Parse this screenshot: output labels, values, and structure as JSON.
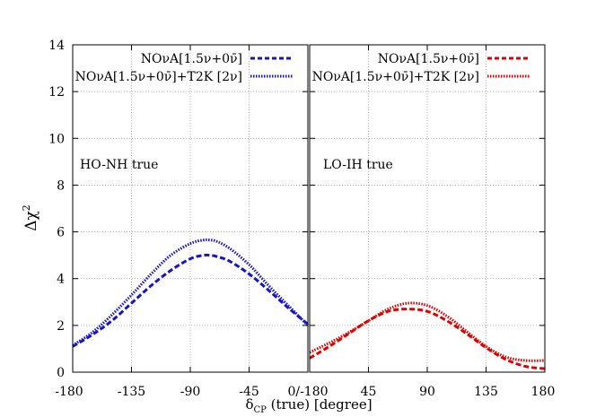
{
  "chart_data": {
    "type": "line",
    "ylabel": "Δχ²",
    "xlabel": "δCP (true) [degree]",
    "xlabel_main": "δ",
    "xlabel_sub": "CP",
    "xlabel_rest": " (true) [degree]",
    "ylabel_main": "Δχ",
    "ylabel_sup": "2",
    "ylim": [
      0,
      14
    ],
    "yticks": [
      "0",
      "2",
      "4",
      "6",
      "8",
      "10",
      "12",
      "14"
    ],
    "grid": true,
    "panels": [
      {
        "annotation": "HO-NH true",
        "xlim": [
          -180,
          0
        ],
        "xticks": [
          "-180",
          "-135",
          "-90",
          "-45",
          "0/-180"
        ],
        "legend_position": "top-right",
        "series": [
          {
            "name": "NOνA[1.5ν+0ν̄]",
            "color": "#1414c8",
            "style": "dashed",
            "x": [
              -180,
              -165,
              -150,
              -135,
              -120,
              -105,
              -90,
              -80,
              -75,
              -70,
              -60,
              -45,
              -30,
              -15,
              0
            ],
            "y": [
              1.1,
              1.6,
              2.2,
              2.95,
              3.7,
              4.35,
              4.85,
              5.0,
              5.0,
              4.95,
              4.75,
              4.2,
              3.5,
              2.75,
              2.05
            ]
          },
          {
            "name": "NOνA[1.5ν+0ν̄]+T2K [2ν]",
            "color": "#1414c8",
            "style": "dotted",
            "x": [
              -180,
              -165,
              -150,
              -135,
              -120,
              -105,
              -90,
              -80,
              -75,
              -70,
              -60,
              -45,
              -30,
              -15,
              0
            ],
            "y": [
              1.15,
              1.7,
              2.45,
              3.3,
              4.2,
              5.0,
              5.5,
              5.65,
              5.65,
              5.6,
              5.3,
              4.6,
              3.7,
              2.85,
              2.0
            ]
          }
        ]
      },
      {
        "annotation": "LO-IH true",
        "xlim": [
          -180,
          180
        ],
        "xticks": [
          "45",
          "90",
          "135",
          "180"
        ],
        "legend_position": "top-right",
        "series": [
          {
            "name": "NOνA[1.5ν+0ν̄]",
            "color": "#e00000",
            "style": "dashed",
            "x": [
              0,
              15,
              30,
              45,
              60,
              75,
              90,
              105,
              120,
              135,
              150,
              165,
              180
            ],
            "y": [
              0.6,
              1.1,
              1.65,
              2.2,
              2.6,
              2.7,
              2.6,
              2.2,
              1.65,
              1.05,
              0.55,
              0.25,
              0.15
            ]
          },
          {
            "name": "NOνA[1.5ν+0ν̄]+T2K [2ν]",
            "color": "#e00000",
            "style": "dotted",
            "x": [
              0,
              15,
              30,
              45,
              60,
              75,
              90,
              105,
              120,
              135,
              150,
              165,
              180
            ],
            "y": [
              0.85,
              1.25,
              1.7,
              2.2,
              2.7,
              2.95,
              2.85,
              2.4,
              1.75,
              1.1,
              0.65,
              0.5,
              0.5
            ]
          }
        ]
      }
    ]
  }
}
